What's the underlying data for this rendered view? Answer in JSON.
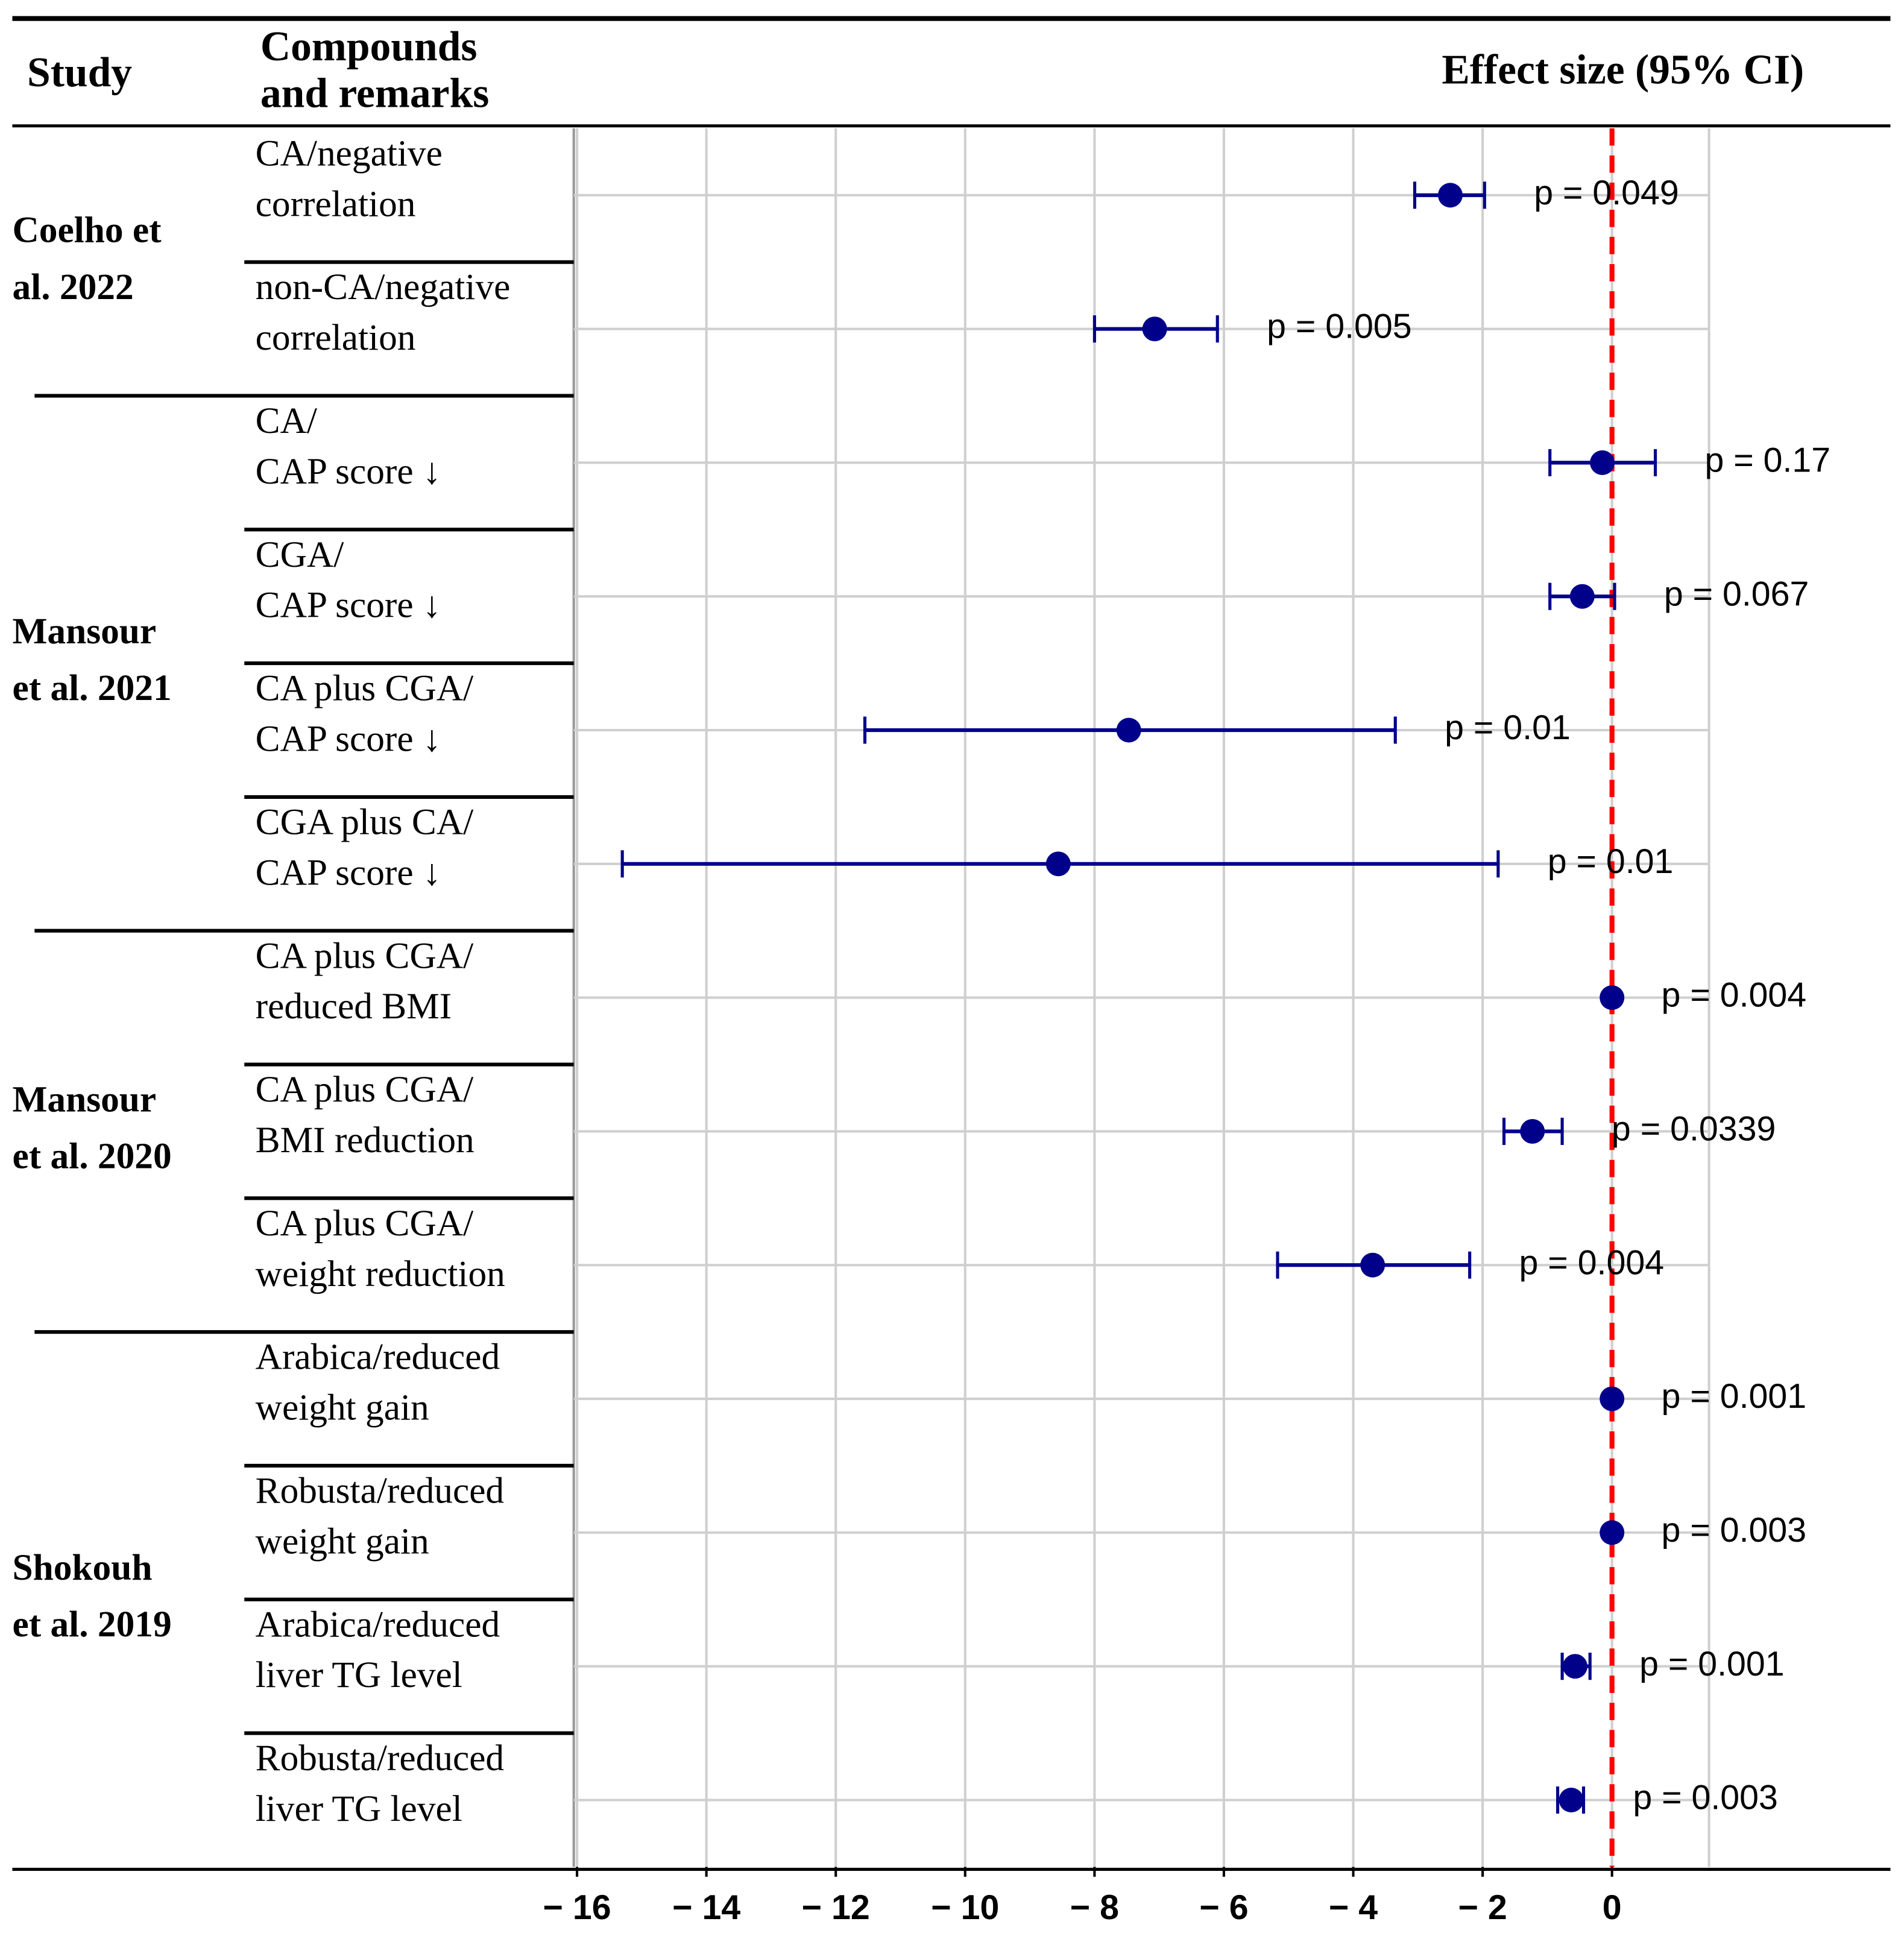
{
  "chart_data": {
    "type": "forest",
    "headers": {
      "study": "Study",
      "remarks": [
        "Compounds",
        "and remarks"
      ],
      "effect": "Effect size (95% CI)"
    },
    "xlim": [
      -16.05,
      1.5
    ],
    "xticks": [
      {
        "value": -16,
        "label": "− 16"
      },
      {
        "value": -14,
        "label": "− 14"
      },
      {
        "value": -12,
        "label": "− 12"
      },
      {
        "value": -10,
        "label": "− 10"
      },
      {
        "value": -8,
        "label": "− 8"
      },
      {
        "value": -6,
        "label": "− 6"
      },
      {
        "value": -4,
        "label": "− 4"
      },
      {
        "value": -2,
        "label": "− 2"
      },
      0
    ],
    "grid": true,
    "color": "#00008b",
    "ref_line": {
      "value": 0,
      "color": "#ff0000"
    },
    "studies": [
      {
        "name": [
          "Coelho et",
          "al. 2022"
        ],
        "rows": [
          {
            "remark": [
              "CA/negative",
              "correlation"
            ],
            "value": -2.5,
            "lower": -3.05,
            "upper": -1.97,
            "p_label": "p = 0.049"
          },
          {
            "remark": [
              "non-CA/negative",
              "correlation"
            ],
            "value": -7.07,
            "lower": -8.0,
            "upper": -6.1,
            "p_label": "p = 0.005"
          }
        ]
      },
      {
        "name": [
          "Mansour",
          "et al. 2021"
        ],
        "rows": [
          {
            "remark": [
              "CA/",
              "CAP score ↓"
            ],
            "value": -0.15,
            "lower": -0.96,
            "upper": 0.67,
            "p_label": "p = 0.17"
          },
          {
            "remark": [
              "CGA/",
              "CAP score ↓"
            ],
            "value": -0.46,
            "lower": -0.96,
            "upper": 0.04,
            "p_label": "p = 0.067"
          },
          {
            "remark": [
              "CA plus CGA/",
              "CAP score ↓"
            ],
            "value": -7.47,
            "lower": -11.55,
            "upper": -3.35,
            "p_label": "p = 0.01"
          },
          {
            "remark": [
              "CGA plus CA/",
              "CAP score ↓"
            ],
            "value": -8.56,
            "lower": -15.3,
            "upper": -1.76,
            "p_label": "p = 0.01"
          }
        ]
      },
      {
        "name": [
          "Mansour",
          "et al. 2020"
        ],
        "rows": [
          {
            "remark": [
              "CA plus CGA/",
              "reduced BMI"
            ],
            "value": 0,
            "lower": null,
            "upper": null,
            "p_label": "p = 0.004"
          },
          {
            "remark": [
              "CA plus CGA/",
              "BMI reduction"
            ],
            "value": -1.23,
            "lower": -1.67,
            "upper": -0.77,
            "p_label": "p = 0.0339"
          },
          {
            "remark": [
              "CA plus CGA/",
              "weight reduction"
            ],
            "value": -3.7,
            "lower": -5.17,
            "upper": -2.2,
            "p_label": "p = 0.004"
          }
        ]
      },
      {
        "name": [
          "Shokouh",
          "et al. 2019"
        ],
        "rows": [
          {
            "remark": [
              "Arabica/reduced",
              "weight gain"
            ],
            "value": 0,
            "lower": null,
            "upper": null,
            "p_label": "p = 0.001"
          },
          {
            "remark": [
              "Robusta/reduced",
              "weight gain"
            ],
            "value": 0,
            "lower": null,
            "upper": null,
            "p_label": "p = 0.003"
          },
          {
            "remark": [
              "Arabica/reduced",
              "liver TG level"
            ],
            "value": -0.57,
            "lower": -0.77,
            "upper": -0.34,
            "p_label": "p = 0.001"
          },
          {
            "remark": [
              "Robusta/reduced",
              "liver TG level"
            ],
            "value": -0.63,
            "lower": -0.84,
            "upper": -0.44,
            "p_label": "p = 0.003"
          }
        ]
      }
    ]
  }
}
